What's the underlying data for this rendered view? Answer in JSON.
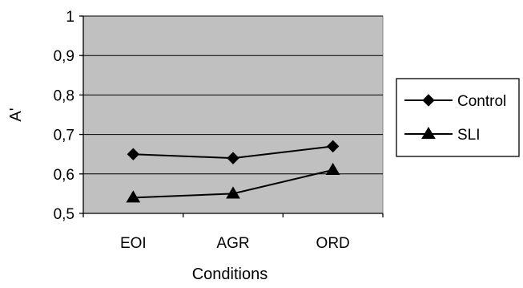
{
  "chart_data": {
    "type": "line",
    "categories": [
      "EOI",
      "AGR",
      "ORD"
    ],
    "series": [
      {
        "name": "Control",
        "values": [
          0.65,
          0.64,
          0.67
        ],
        "marker": "diamond",
        "color": "#000000"
      },
      {
        "name": "SLI",
        "values": [
          0.54,
          0.55,
          0.61
        ],
        "marker": "triangle",
        "color": "#000000"
      }
    ],
    "xlabel": "Conditions",
    "ylabel": "A'",
    "ylim": [
      0.5,
      1
    ],
    "yticks": [
      0.5,
      0.6,
      0.7,
      0.8,
      0.9,
      1
    ],
    "ytick_labels": [
      "0,5",
      "0,6",
      "0,7",
      "0,8",
      "0,9",
      "1"
    ],
    "plot_background": "#c0c0c0",
    "grid": true,
    "legend_position": "right"
  }
}
